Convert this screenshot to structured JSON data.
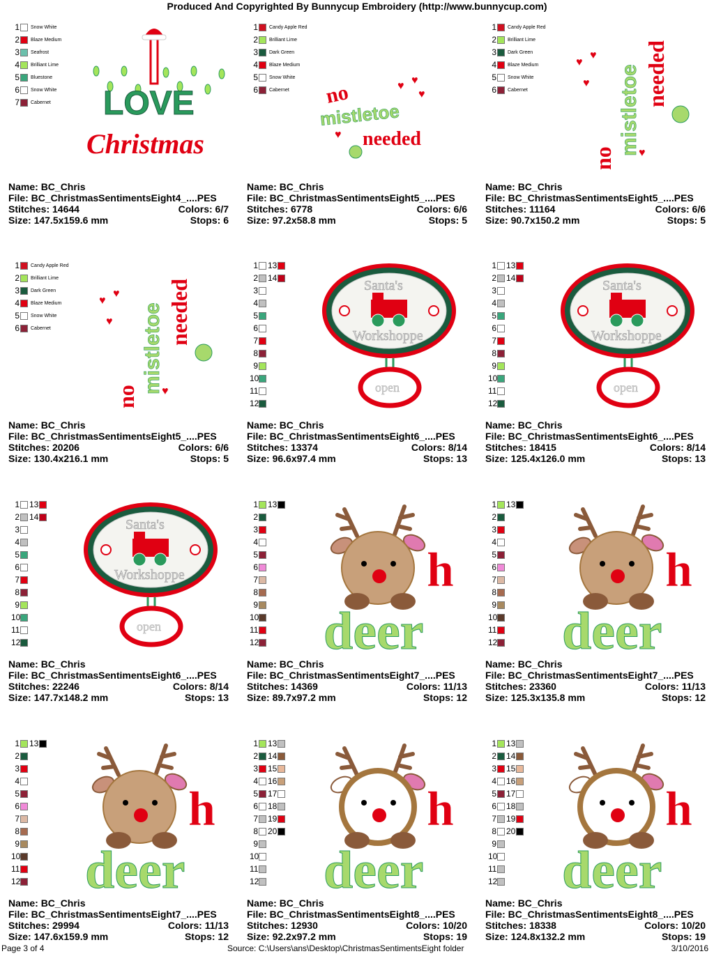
{
  "header": "Produced And Copyrighted By Bunnycup Embroidery (http://www.bunnycup.com)",
  "footer": {
    "page": "Page 3 of 4",
    "source": "Source:  C:\\Users\\ans\\Desktop\\ChristmasSentimentsEight folder",
    "date": "3/10/2016"
  },
  "labels": {
    "name": "Name: ",
    "file": "File: ",
    "stitches": "Stitches: ",
    "colors": "Colors: ",
    "size": "Size: ",
    "stops": "Stops: "
  },
  "colors": {
    "red": "#e00012",
    "green": "#2a9a5c",
    "dark_green": "#1a5b3e",
    "lime": "#a4e55b",
    "brown": "#8a5a3a",
    "tan": "#c8a07a",
    "light_brown": "#a4763e",
    "pink": "#e07ab0",
    "cream": "#f3eedf",
    "light_green": "#a7d96c"
  },
  "designs": [
    {
      "name": "BC_Chris",
      "file": "BC_ChristmasSentimentsEight4_....PES",
      "stitches": "14644",
      "colors": "6/7",
      "size": "147.5x159.6 mm",
      "stops": "6",
      "art": "love",
      "art_words": [
        "LOVE",
        "Christmas"
      ],
      "legend": [
        {
          "n": "1",
          "c": "#ffffff",
          "label": "Snow White"
        },
        {
          "n": "2",
          "c": "#e00012",
          "label": "Blaze Medium"
        },
        {
          "n": "3",
          "c": "#6cc0ac",
          "label": "Seafrost"
        },
        {
          "n": "4",
          "c": "#a4e55b",
          "label": "Brilliant Lime"
        },
        {
          "n": "5",
          "c": "#3aa67c",
          "label": "Bluestone"
        },
        {
          "n": "6",
          "c": "#ffffff",
          "label": "Snow White"
        },
        {
          "n": "7",
          "c": "#8c2137",
          "label": "Cabernet"
        }
      ]
    },
    {
      "name": "BC_Chris",
      "file": "BC_ChristmasSentimentsEight5_....PES",
      "stitches": "6778",
      "colors": "6/6",
      "size": "97.2x58.8 mm",
      "stops": "5",
      "art": "mistle_h",
      "art_words": [
        "no",
        "mistletoe",
        "needed"
      ],
      "legend": [
        {
          "n": "1",
          "c": "#d01020",
          "label": "Candy Apple Red"
        },
        {
          "n": "2",
          "c": "#a4e55b",
          "label": "Brilliant Lime"
        },
        {
          "n": "3",
          "c": "#1a5b3e",
          "label": "Dark Green"
        },
        {
          "n": "4",
          "c": "#e00012",
          "label": "Blaze Medium"
        },
        {
          "n": "5",
          "c": "#ffffff",
          "label": "Snow White"
        },
        {
          "n": "6",
          "c": "#8c2137",
          "label": "Cabernet"
        }
      ]
    },
    {
      "name": "BC_Chris",
      "file": "BC_ChristmasSentimentsEight5_....PES",
      "stitches": "11164",
      "colors": "6/6",
      "size": "90.7x150.2 mm",
      "stops": "5",
      "art": "mistle_v",
      "art_words": [
        "no",
        "mistletoe",
        "needed"
      ],
      "legend": [
        {
          "n": "1",
          "c": "#d01020",
          "label": "Candy Apple Red"
        },
        {
          "n": "2",
          "c": "#a4e55b",
          "label": "Brilliant Lime"
        },
        {
          "n": "3",
          "c": "#1a5b3e",
          "label": "Dark Green"
        },
        {
          "n": "4",
          "c": "#e00012",
          "label": "Blaze Medium"
        },
        {
          "n": "5",
          "c": "#ffffff",
          "label": "Snow White"
        },
        {
          "n": "6",
          "c": "#8c2137",
          "label": "Cabernet"
        }
      ]
    },
    {
      "name": "BC_Chris",
      "file": "BC_ChristmasSentimentsEight5_....PES",
      "stitches": "20206",
      "colors": "6/6",
      "size": "130.4x216.1 mm",
      "stops": "5",
      "art": "mistle_v",
      "art_words": [
        "no",
        "mistletoe",
        "needed"
      ],
      "legend": [
        {
          "n": "1",
          "c": "#d01020",
          "label": "Candy Apple Red"
        },
        {
          "n": "2",
          "c": "#a4e55b",
          "label": "Brilliant Lime"
        },
        {
          "n": "3",
          "c": "#1a5b3e",
          "label": "Dark Green"
        },
        {
          "n": "4",
          "c": "#e00012",
          "label": "Blaze Medium"
        },
        {
          "n": "5",
          "c": "#ffffff",
          "label": "Snow White"
        },
        {
          "n": "6",
          "c": "#8c2137",
          "label": "Cabernet"
        }
      ]
    },
    {
      "name": "BC_Chris",
      "file": "BC_ChristmasSentimentsEight6_....PES",
      "stitches": "13374",
      "colors": "8/14",
      "size": "96.6x97.4 mm",
      "stops": "13",
      "art": "santa",
      "art_words": [
        "Santa's",
        "Workshoppe",
        "open"
      ],
      "legend": [
        {
          "n": "1",
          "c": "#ffffff",
          "n2": "13",
          "c2": "#e00012"
        },
        {
          "n": "2",
          "c": "#c0c0c0",
          "n2": "14",
          "c2": "#c00018"
        },
        {
          "n": "3",
          "c": "#ffffff"
        },
        {
          "n": "4",
          "c": "#c0c0c0"
        },
        {
          "n": "5",
          "c": "#3aa67c"
        },
        {
          "n": "6",
          "c": "#ffffff"
        },
        {
          "n": "7",
          "c": "#e00012"
        },
        {
          "n": "8",
          "c": "#8c2137"
        },
        {
          "n": "9",
          "c": "#a4e55b"
        },
        {
          "n": "10",
          "c": "#3aa67c"
        },
        {
          "n": "11",
          "c": "#ffffff"
        },
        {
          "n": "12",
          "c": "#1a5b3e"
        }
      ]
    },
    {
      "name": "BC_Chris",
      "file": "BC_ChristmasSentimentsEight6_....PES",
      "stitches": "18415",
      "colors": "8/14",
      "size": "125.4x126.0 mm",
      "stops": "13",
      "art": "santa",
      "art_words": [
        "Santa's",
        "Workshoppe",
        "open"
      ],
      "legend": [
        {
          "n": "1",
          "c": "#ffffff",
          "n2": "13",
          "c2": "#e00012"
        },
        {
          "n": "2",
          "c": "#c0c0c0",
          "n2": "14",
          "c2": "#c00018"
        },
        {
          "n": "3",
          "c": "#ffffff"
        },
        {
          "n": "4",
          "c": "#c0c0c0"
        },
        {
          "n": "5",
          "c": "#3aa67c"
        },
        {
          "n": "6",
          "c": "#ffffff"
        },
        {
          "n": "7",
          "c": "#e00012"
        },
        {
          "n": "8",
          "c": "#8c2137"
        },
        {
          "n": "9",
          "c": "#a4e55b"
        },
        {
          "n": "10",
          "c": "#3aa67c"
        },
        {
          "n": "11",
          "c": "#ffffff"
        },
        {
          "n": "12",
          "c": "#1a5b3e"
        }
      ]
    },
    {
      "name": "BC_Chris",
      "file": "BC_ChristmasSentimentsEight6_....PES",
      "stitches": "22246",
      "colors": "8/14",
      "size": "147.7x148.2 mm",
      "stops": "13",
      "art": "santa",
      "art_words": [
        "Santa's",
        "Workshoppe",
        "open"
      ],
      "legend": [
        {
          "n": "1",
          "c": "#ffffff",
          "n2": "13",
          "c2": "#e00012"
        },
        {
          "n": "2",
          "c": "#c0c0c0",
          "n2": "14",
          "c2": "#c00018"
        },
        {
          "n": "3",
          "c": "#ffffff"
        },
        {
          "n": "4",
          "c": "#c0c0c0"
        },
        {
          "n": "5",
          "c": "#3aa67c"
        },
        {
          "n": "6",
          "c": "#ffffff"
        },
        {
          "n": "7",
          "c": "#e00012"
        },
        {
          "n": "8",
          "c": "#8c2137"
        },
        {
          "n": "9",
          "c": "#a4e55b"
        },
        {
          "n": "10",
          "c": "#3aa67c"
        },
        {
          "n": "11",
          "c": "#ffffff"
        },
        {
          "n": "12",
          "c": "#1a5b3e"
        }
      ]
    },
    {
      "name": "BC_Chris",
      "file": "BC_ChristmasSentimentsEight7_....PES",
      "stitches": "14369",
      "colors": "11/13",
      "size": "89.7x97.2 mm",
      "stops": "12",
      "art": "deer",
      "art_words": [
        "h",
        "deer"
      ],
      "legend": [
        {
          "n": "1",
          "c": "#a4e55b",
          "n2": "13",
          "c2": "#000000"
        },
        {
          "n": "2",
          "c": "#1a5b3e"
        },
        {
          "n": "3",
          "c": "#e00012"
        },
        {
          "n": "4",
          "c": "#ffffff"
        },
        {
          "n": "5",
          "c": "#8c2137"
        },
        {
          "n": "6",
          "c": "#f08ad8"
        },
        {
          "n": "7",
          "c": "#dcb9a5"
        },
        {
          "n": "8",
          "c": "#a66b50"
        },
        {
          "n": "9",
          "c": "#a88a60"
        },
        {
          "n": "10",
          "c": "#5a3a2a"
        },
        {
          "n": "11",
          "c": "#e00012"
        },
        {
          "n": "12",
          "c": "#8c2137"
        }
      ]
    },
    {
      "name": "BC_Chris",
      "file": "BC_ChristmasSentimentsEight7_....PES",
      "stitches": "23360",
      "colors": "11/13",
      "size": "125.3x135.8 mm",
      "stops": "12",
      "art": "deer",
      "art_words": [
        "h",
        "deer"
      ],
      "legend": [
        {
          "n": "1",
          "c": "#a4e55b",
          "n2": "13",
          "c2": "#000000"
        },
        {
          "n": "2",
          "c": "#1a5b3e"
        },
        {
          "n": "3",
          "c": "#e00012"
        },
        {
          "n": "4",
          "c": "#ffffff"
        },
        {
          "n": "5",
          "c": "#8c2137"
        },
        {
          "n": "6",
          "c": "#f08ad8"
        },
        {
          "n": "7",
          "c": "#dcb9a5"
        },
        {
          "n": "8",
          "c": "#a66b50"
        },
        {
          "n": "9",
          "c": "#a88a60"
        },
        {
          "n": "10",
          "c": "#5a3a2a"
        },
        {
          "n": "11",
          "c": "#e00012"
        },
        {
          "n": "12",
          "c": "#8c2137"
        }
      ]
    },
    {
      "name": "BC_Chris",
      "file": "BC_ChristmasSentimentsEight7_....PES",
      "stitches": "29994",
      "colors": "11/13",
      "size": "147.6x159.9 mm",
      "stops": "12",
      "art": "deer",
      "art_words": [
        "h",
        "deer"
      ],
      "legend": [
        {
          "n": "1",
          "c": "#a4e55b",
          "n2": "13",
          "c2": "#000000"
        },
        {
          "n": "2",
          "c": "#1a5b3e"
        },
        {
          "n": "3",
          "c": "#e00012"
        },
        {
          "n": "4",
          "c": "#ffffff"
        },
        {
          "n": "5",
          "c": "#8c2137"
        },
        {
          "n": "6",
          "c": "#f08ad8"
        },
        {
          "n": "7",
          "c": "#dcb9a5"
        },
        {
          "n": "8",
          "c": "#a66b50"
        },
        {
          "n": "9",
          "c": "#a88a60"
        },
        {
          "n": "10",
          "c": "#5a3a2a"
        },
        {
          "n": "11",
          "c": "#e00012"
        },
        {
          "n": "12",
          "c": "#8c2137"
        }
      ]
    },
    {
      "name": "BC_Chris",
      "file": "BC_ChristmasSentimentsEight8_....PES",
      "stitches": "12930",
      "colors": "10/20",
      "size": "92.2x97.2 mm",
      "stops": "19",
      "art": "deer2",
      "art_words": [
        "h",
        "deer"
      ],
      "legend": [
        {
          "n": "1",
          "c": "#a4e55b",
          "n2": "13",
          "c2": "#c0c0c0"
        },
        {
          "n": "2",
          "c": "#1a5b3e",
          "n2": "14",
          "c2": "#8a5a3a"
        },
        {
          "n": "3",
          "c": "#e00012",
          "n2": "15",
          "c2": "#e8b89a"
        },
        {
          "n": "4",
          "c": "#ffffff",
          "n2": "16",
          "c2": "#c8a07a"
        },
        {
          "n": "5",
          "c": "#8c2137",
          "n2": "17",
          "c2": "#ffffff"
        },
        {
          "n": "6",
          "c": "#ffffff",
          "n2": "18",
          "c2": "#c0c0c0"
        },
        {
          "n": "7",
          "c": "#c0c0c0",
          "n2": "19",
          "c2": "#e00012"
        },
        {
          "n": "8",
          "c": "#ffffff",
          "n2": "20",
          "c2": "#000000"
        },
        {
          "n": "9",
          "c": "#c0c0c0"
        },
        {
          "n": "10",
          "c": "#ffffff"
        },
        {
          "n": "11",
          "c": "#c0c0c0"
        },
        {
          "n": "12",
          "c": "#c0c0c0"
        }
      ]
    },
    {
      "name": "BC_Chris",
      "file": "BC_ChristmasSentimentsEight8_....PES",
      "stitches": "18338",
      "colors": "10/20",
      "size": "124.8x132.2 mm",
      "stops": "19",
      "art": "deer2",
      "art_words": [
        "h",
        "deer"
      ],
      "legend": [
        {
          "n": "1",
          "c": "#a4e55b",
          "n2": "13",
          "c2": "#c0c0c0"
        },
        {
          "n": "2",
          "c": "#1a5b3e",
          "n2": "14",
          "c2": "#8a5a3a"
        },
        {
          "n": "3",
          "c": "#e00012",
          "n2": "15",
          "c2": "#e8b89a"
        },
        {
          "n": "4",
          "c": "#ffffff",
          "n2": "16",
          "c2": "#c8a07a"
        },
        {
          "n": "5",
          "c": "#8c2137",
          "n2": "17",
          "c2": "#ffffff"
        },
        {
          "n": "6",
          "c": "#ffffff",
          "n2": "18",
          "c2": "#c0c0c0"
        },
        {
          "n": "7",
          "c": "#c0c0c0",
          "n2": "19",
          "c2": "#e00012"
        },
        {
          "n": "8",
          "c": "#ffffff",
          "n2": "20",
          "c2": "#000000"
        },
        {
          "n": "9",
          "c": "#c0c0c0"
        },
        {
          "n": "10",
          "c": "#ffffff"
        },
        {
          "n": "11",
          "c": "#c0c0c0"
        },
        {
          "n": "12",
          "c": "#c0c0c0"
        }
      ]
    }
  ]
}
